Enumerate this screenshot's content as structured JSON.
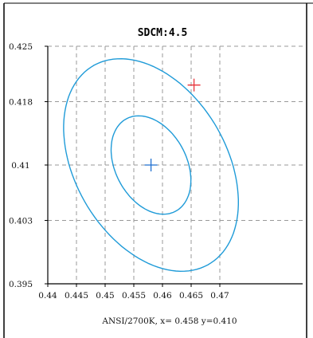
{
  "chart_data": {
    "type": "scatter",
    "title": "SDCM:4.5",
    "xlabel": "ANSI/2700K, x= 0.458 y=0.410",
    "ylabel": "",
    "xlim": [
      0.44,
      0.48
    ],
    "ylim": [
      0.395,
      0.425
    ],
    "x_ticks": [
      0.44,
      0.445,
      0.45,
      0.455,
      0.46,
      0.465,
      0.47
    ],
    "x_tick_labels": [
      "0.44",
      "0.445",
      "0.45",
      "0.455",
      "0.46",
      "0.465",
      "0.47"
    ],
    "y_ticks": [
      0.395,
      0.403,
      0.41,
      0.418,
      0.425
    ],
    "y_tick_labels": [
      "0.395",
      "0.403",
      "0.41",
      "0.418",
      "0.425"
    ],
    "grid": true,
    "ellipses": [
      {
        "cx": 0.458,
        "cy": 0.41,
        "rx": 0.0114,
        "ry": 0.0168,
        "rotation_deg": 55,
        "color": "#1f9bd8"
      },
      {
        "cx": 0.458,
        "cy": 0.41,
        "rx": 0.0054,
        "ry": 0.0076,
        "rotation_deg": 55,
        "color": "#1f9bd8"
      }
    ],
    "markers": [
      {
        "x": 0.458,
        "y": 0.41,
        "symbol": "+",
        "color": "#1f6fd0"
      },
      {
        "x": 0.4655,
        "y": 0.4201,
        "symbol": "+",
        "color": "#e8333a"
      }
    ],
    "colors": {
      "grid": "#999999",
      "axis": "#000000",
      "ellipse": "#1f9bd8"
    }
  }
}
